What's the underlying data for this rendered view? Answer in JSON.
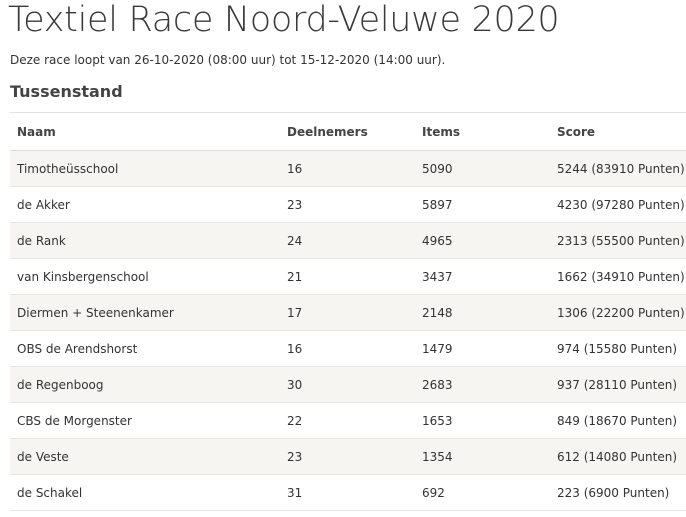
{
  "header": {
    "title": "Textiel Race Noord-Veluwe 2020",
    "subtitle": "Deze race loopt van 26-10-2020 (08:00 uur) tot 15-12-2020 (14:00 uur)."
  },
  "section": {
    "title": "Tussenstand"
  },
  "table": {
    "columns": [
      "Naam",
      "Deelnemers",
      "Items",
      "Score"
    ],
    "rows": [
      [
        "Timotheüsschool",
        "16",
        "5090",
        "5244 (83910 Punten)"
      ],
      [
        "de Akker",
        "23",
        "5897",
        "4230 (97280 Punten)"
      ],
      [
        "de Rank",
        "24",
        "4965",
        "2313 (55500 Punten)"
      ],
      [
        "van Kinsbergenschool",
        "21",
        "3437",
        "1662 (34910 Punten)"
      ],
      [
        "Diermen + Steenenkamer",
        "17",
        "2148",
        "1306 (22200 Punten)"
      ],
      [
        "OBS de Arendshorst",
        "16",
        "1479",
        "974 (15580 Punten)"
      ],
      [
        "de Regenboog",
        "30",
        "2683",
        "937 (28110 Punten)"
      ],
      [
        "CBS de Morgenster",
        "22",
        "1653",
        "849 (18670 Punten)"
      ],
      [
        "de Veste",
        "23",
        "1354",
        "612 (14080 Punten)"
      ],
      [
        "de Schakel",
        "31",
        "692",
        "223 (6900 Punten)"
      ]
    ]
  }
}
